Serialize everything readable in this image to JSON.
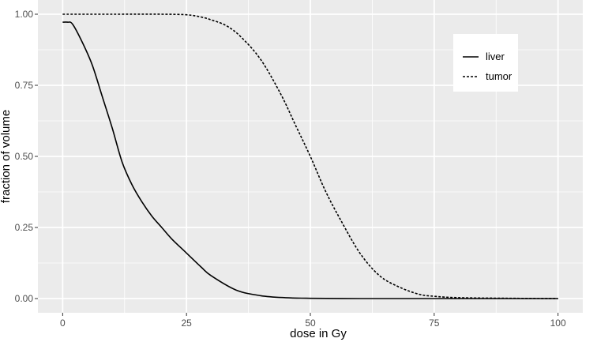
{
  "chart_data": {
    "type": "line",
    "title": "",
    "xlabel": "dose in Gy",
    "ylabel": "fraction of volume",
    "xlim": [
      -5,
      105
    ],
    "ylim": [
      -0.05,
      1.05
    ],
    "x_ticks": [
      0,
      25,
      50,
      75,
      100
    ],
    "x_tick_labels": [
      "0",
      "25",
      "50",
      "75",
      "100"
    ],
    "y_ticks": [
      0,
      0.25,
      0.5,
      0.75,
      1
    ],
    "y_tick_labels": [
      "0.00",
      "0.25",
      "0.50",
      "0.75",
      "1.00"
    ],
    "grid": true,
    "legend_position": "top-right",
    "colors": {
      "panel": "#ebebeb",
      "grid": "#ffffff",
      "line": "#000000"
    },
    "series": [
      {
        "name": "liver",
        "linestyle": "solid",
        "x": [
          0,
          1,
          2,
          4,
          6,
          8,
          10,
          12,
          14,
          16,
          18,
          20,
          22,
          25,
          28,
          30,
          35,
          40,
          45,
          50,
          60,
          70,
          80,
          90,
          100
        ],
        "y": [
          0.972,
          0.972,
          0.965,
          0.9,
          0.82,
          0.71,
          0.6,
          0.48,
          0.4,
          0.34,
          0.29,
          0.25,
          0.21,
          0.16,
          0.11,
          0.08,
          0.03,
          0.01,
          0.003,
          0.001,
          0,
          0,
          0,
          0,
          0
        ]
      },
      {
        "name": "tumor",
        "linestyle": "dashed",
        "x": [
          0,
          10,
          20,
          25,
          28,
          30,
          33,
          36,
          40,
          44,
          47,
          50,
          53,
          56,
          60,
          64,
          68,
          72,
          75,
          80,
          90,
          100
        ],
        "y": [
          1,
          1,
          1,
          0.998,
          0.99,
          0.98,
          0.96,
          0.92,
          0.84,
          0.72,
          0.61,
          0.5,
          0.38,
          0.28,
          0.16,
          0.08,
          0.04,
          0.015,
          0.008,
          0.003,
          0.001,
          0
        ]
      }
    ]
  }
}
